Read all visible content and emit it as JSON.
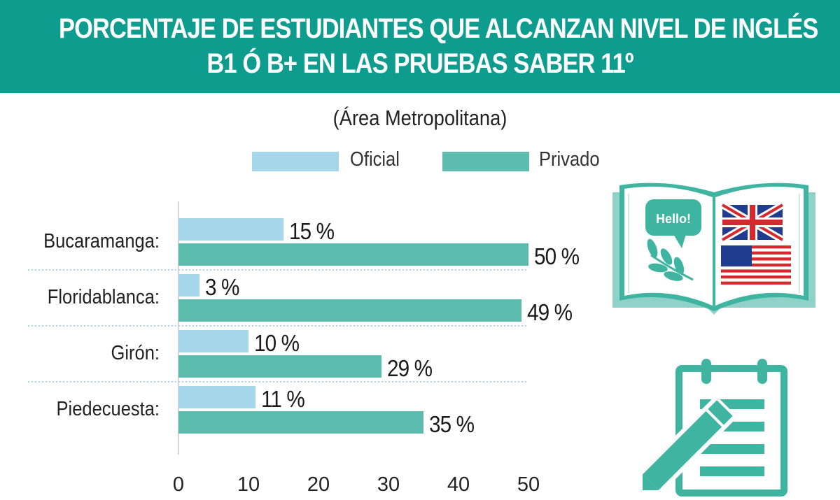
{
  "header": {
    "line1": "PORCENTAJE DE ESTUDIANTES QUE ALCANZAN NIVEL DE INGLÉS",
    "line2": "B1 Ó B+ EN LAS PRUEBAS SABER 11º"
  },
  "subtitle": "(Área Metropolitana)",
  "colors": {
    "header_bg": "#0e9c8e",
    "oficial": "#a6d6ea",
    "privado": "#5cbcad"
  },
  "illustration": {
    "speech_bubble": "Hello!",
    "book_icon": "open-book-icon",
    "uk_flag_icon": "uk-flag-icon",
    "us_flag_icon": "us-flag-icon",
    "clipboard_icon": "clipboard-pencil-icon"
  },
  "chart_data": {
    "type": "bar",
    "orientation": "horizontal",
    "title": "PORCENTAJE DE ESTUDIANTES QUE ALCANZAN NIVEL DE INGLÉS B1 Ó B+ EN LAS PRUEBAS SABER 11º",
    "subtitle": "(Área Metropolitana)",
    "categories": [
      "Bucaramanga:",
      "Floridablanca:",
      "Girón:",
      "Piedecuesta:"
    ],
    "series": [
      {
        "name": "Oficial",
        "values": [
          15,
          3,
          10,
          11
        ],
        "labels": [
          "15 %",
          "3 %",
          "10 %",
          "11 %"
        ]
      },
      {
        "name": "Privado",
        "values": [
          50,
          49,
          29,
          35
        ],
        "labels": [
          "50 %",
          "49 %",
          "29 %",
          "35 %"
        ]
      }
    ],
    "xlim": [
      0,
      50
    ],
    "xticks": [
      0,
      10,
      20,
      30,
      40,
      50
    ],
    "xlabel": "",
    "ylabel": "",
    "legend_position": "top",
    "grid": "dotted separators between categories"
  }
}
